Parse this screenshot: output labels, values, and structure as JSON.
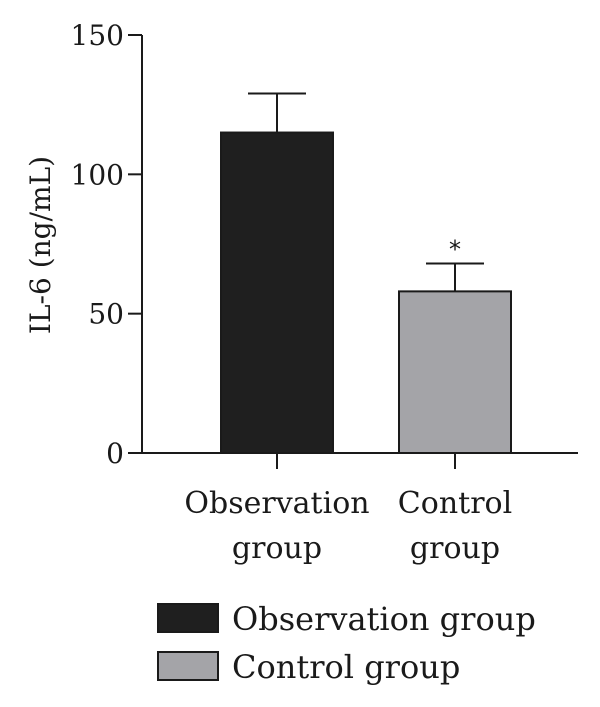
{
  "chart_data": {
    "type": "bar",
    "title": "",
    "ylabel": "IL-6 (ng/mL)",
    "xlabel": "",
    "ylim": [
      0,
      150
    ],
    "yticks": [
      0,
      50,
      100,
      150
    ],
    "categories": [
      [
        "Observation",
        "group"
      ],
      [
        "Control",
        "group"
      ]
    ],
    "values": [
      115,
      58
    ],
    "errors": [
      14,
      10
    ],
    "significance": [
      "",
      "*"
    ],
    "colors": [
      "#1f1f1f",
      "#a4a4a8"
    ],
    "legend": {
      "placement": "bottom",
      "entries": [
        {
          "label": "Observation group",
          "color": "#1f1f1f"
        },
        {
          "label": "Control group",
          "color": "#a4a4a8"
        }
      ]
    },
    "grid": false
  }
}
